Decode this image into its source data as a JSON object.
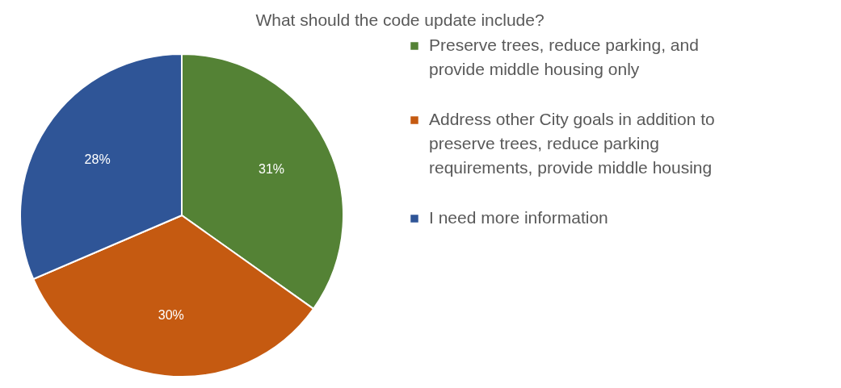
{
  "chart_data": {
    "type": "pie",
    "title": "What should the code update include?",
    "categories": [
      "Preserve trees, reduce parking, and provide middle housing only",
      "Address other City goals in addition to preserve trees, reduce parking requirements, provide middle housing",
      "I need more information"
    ],
    "values": [
      31,
      30,
      28
    ],
    "colors": [
      "#548235",
      "#c55a11",
      "#2f5597"
    ],
    "value_labels": [
      "31%",
      "30%",
      "28%"
    ],
    "legend": "right"
  }
}
